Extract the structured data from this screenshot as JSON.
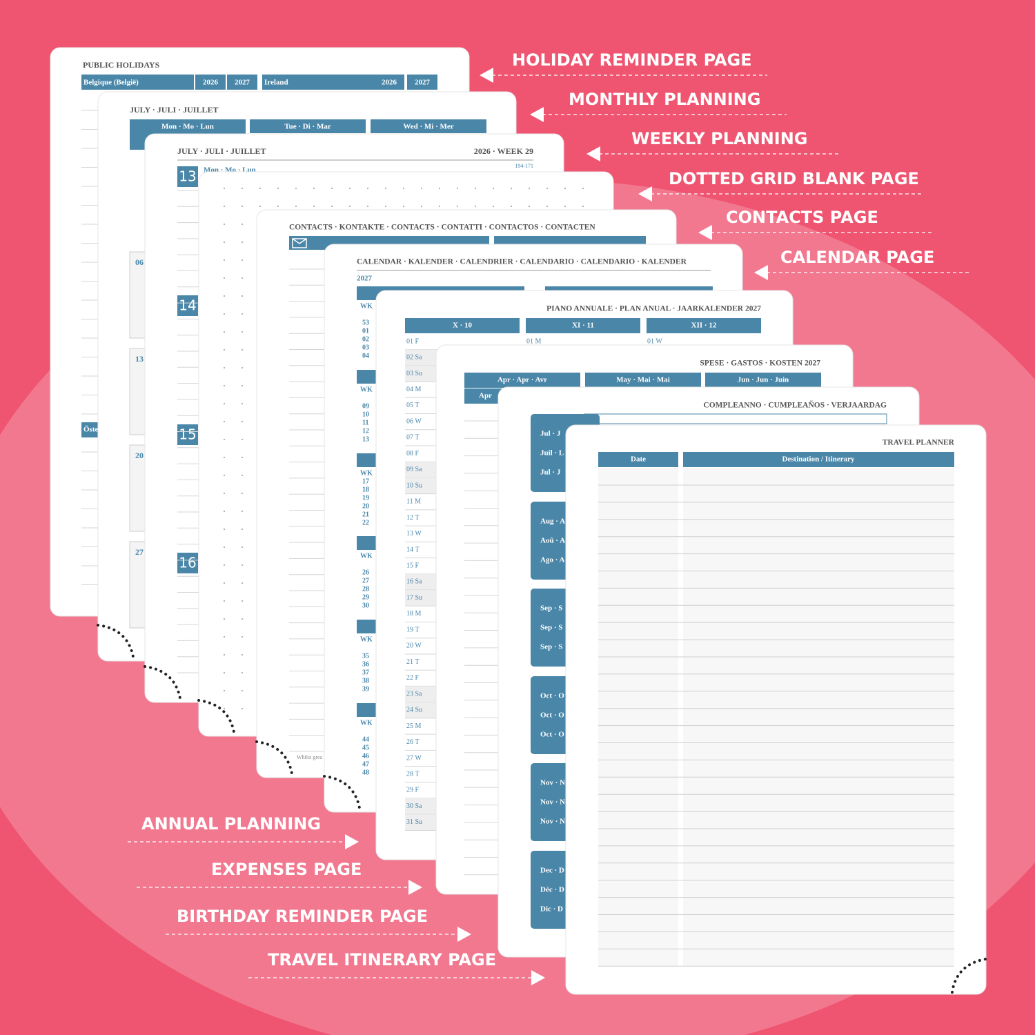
{
  "callouts_right": [
    "HOLIDAY REMINDER PAGE",
    "MONTHLY PLANNING",
    "WEEKLY PLANNING",
    "DOTTED GRID BLANK PAGE",
    "CONTACTS PAGE",
    "CALENDAR PAGE"
  ],
  "callouts_left": [
    "ANNUAL PLANNING",
    "EXPENSES PAGE",
    "BIRTHDAY REMINDER PAGE",
    "TRAVEL ITINERARY PAGE"
  ],
  "holiday": {
    "title": "PUBLIC HOLIDAYS",
    "tables": [
      {
        "country": "Belgique (België)",
        "years": [
          "2026",
          "2027"
        ]
      },
      {
        "country": "Ireland",
        "years": [
          "2026",
          "2027"
        ]
      }
    ],
    "section": "Öste"
  },
  "monthly": {
    "title": "JULY · JULI · JUILLET",
    "columns": [
      "Mon · Mo · Lun",
      "Tue · Di · Mar",
      "Wed · Mi · Mer"
    ],
    "dates": [
      "06",
      "13",
      "20",
      "27"
    ]
  },
  "weekly": {
    "title": "JULY · JULI · JUILLET",
    "week": "2026 · WEEK 29",
    "counter": "194-171",
    "day": "Mon · Mo · Lun",
    "dates": [
      "13",
      "14",
      "15",
      "16"
    ]
  },
  "contacts": {
    "title": "CONTACTS · KONTAKTE · CONTACTS · CONTATTI · CONTACTOS · CONTACTEN",
    "footer": "Whilst grea"
  },
  "calendar": {
    "title": "CALENDAR · KALENDER · CALENDRIER · CALENDARIO · CALENDARIO · KALENDER",
    "year": "2027",
    "wk": "WK",
    "weeks": [
      [
        "53",
        "01",
        "02",
        "03",
        "04"
      ],
      [
        "09",
        "10",
        "11",
        "12",
        "13"
      ],
      [
        "17",
        "18",
        "19",
        "20",
        "21",
        "22"
      ],
      [
        "26",
        "27",
        "28",
        "29",
        "30"
      ],
      [
        "35",
        "36",
        "37",
        "38",
        "39"
      ],
      [
        "44",
        "45",
        "46",
        "47",
        "48"
      ]
    ]
  },
  "annual": {
    "title": "PIANO ANNUALE · PLAN ANUAL · JAARKALENDER 2027",
    "months": [
      "X · 10",
      "XI · 11",
      "XII · 12"
    ],
    "days": [
      "01 F",
      "02 Sa",
      "03 Su",
      "04 M",
      "05 T",
      "06 W",
      "07 T",
      "08 F",
      "09 Sa",
      "10 Su",
      "11 M",
      "12 T",
      "13 W",
      "14 T",
      "15 F",
      "16 Sa",
      "17 Su",
      "18 M",
      "19 T",
      "20 W",
      "21 T",
      "22 F",
      "23 Sa",
      "24 Su",
      "25 M",
      "26 T",
      "27 W",
      "28 T",
      "29 F",
      "30 Sa",
      "31 Su"
    ],
    "first_days": [
      "01 M",
      "01 W"
    ]
  },
  "expenses": {
    "title": "SPESE · GASTOS · KOSTEN 2027",
    "months": [
      "Apr · Apr · Avr",
      "May · Mai · Mai",
      "Jun · Jun · Juin"
    ],
    "row": "Apr"
  },
  "birthday": {
    "title": "COMPLEANNO · CUMPLEAÑOS · VERJAARDAG",
    "months": [
      [
        "Jul · J",
        "Juil · L",
        "Jul · J"
      ],
      [
        "Aug · A",
        "Aoû · A",
        "Ago · A"
      ],
      [
        "Sep · S",
        "Sep · S",
        "Sep · S"
      ],
      [
        "Oct · O",
        "Oct · O",
        "Oct · O"
      ],
      [
        "Nov · N",
        "Nov · N",
        "Nov · N"
      ],
      [
        "Dec · D",
        "Déc · D",
        "Dic · D"
      ]
    ]
  },
  "travel": {
    "title": "TRAVEL PLANNER",
    "columns": [
      "Date",
      "Destination / Itinerary"
    ]
  }
}
